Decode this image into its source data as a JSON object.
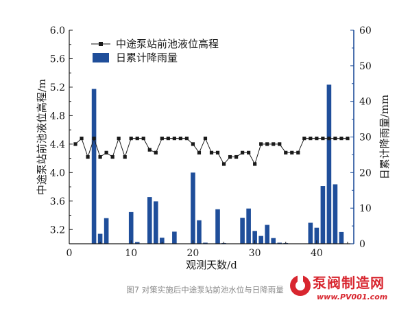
{
  "chart_data": {
    "type": "bar+line",
    "x_label": "观测天数/d",
    "y_left_label": "中途泵站前池液位高程/m",
    "y_right_label": "日累计降雨量/mm",
    "x_ticks": [
      0,
      10,
      20,
      30,
      40
    ],
    "xlim": [
      0,
      46
    ],
    "y_left_ticks": [
      "3.2",
      "3.6",
      "4.0",
      "4.4",
      "4.8",
      "5.2",
      "5.6",
      "6.0"
    ],
    "y_left_lim": [
      3.0,
      6.0
    ],
    "y_right_ticks": [
      "0",
      "10",
      "20",
      "30",
      "40",
      "50",
      "60"
    ],
    "y_right_lim": [
      0,
      60
    ],
    "legend": [
      {
        "name": "中途泵站前池液位高程",
        "marker": "line-square"
      },
      {
        "name": "日累计降雨量",
        "marker": "bar"
      }
    ],
    "line_series": {
      "name": "中途泵站前池液位高程",
      "color": "#1a1a1a",
      "x": [
        1,
        2,
        3,
        4,
        5,
        6,
        7,
        8,
        9,
        10,
        11,
        12,
        13,
        14,
        15,
        16,
        17,
        18,
        19,
        20,
        21,
        22,
        23,
        24,
        25,
        26,
        27,
        28,
        29,
        30,
        31,
        32,
        33,
        34,
        35,
        36,
        37,
        38,
        39,
        40,
        41,
        42,
        43,
        44,
        45
      ],
      "y": [
        4.4,
        4.48,
        4.22,
        4.48,
        4.22,
        4.28,
        4.22,
        4.48,
        4.22,
        4.48,
        4.48,
        4.48,
        4.32,
        4.28,
        4.48,
        4.48,
        4.48,
        4.48,
        4.48,
        4.4,
        4.28,
        4.48,
        4.28,
        4.28,
        4.12,
        4.22,
        4.22,
        4.28,
        4.28,
        4.12,
        4.4,
        4.4,
        4.4,
        4.4,
        4.28,
        4.28,
        4.28,
        4.48,
        4.48,
        4.48,
        4.48,
        4.48,
        4.48,
        4.48,
        4.48
      ]
    },
    "bar_series": {
      "name": "日累计降雨量",
      "color": "#1f4e9a",
      "x": [
        4,
        5,
        6,
        10,
        11,
        13,
        14,
        15,
        17,
        20,
        21,
        22,
        24,
        25,
        28,
        29,
        30,
        31,
        32,
        33,
        34,
        35,
        39,
        40,
        41,
        42,
        43,
        44
      ],
      "y": [
        43.5,
        2.8,
        7.2,
        8.9,
        0.5,
        13.1,
        11.9,
        1.7,
        3.4,
        20.0,
        6.6,
        0.3,
        9.7,
        0.2,
        7.3,
        9.9,
        3.6,
        2.2,
        5.3,
        1.6,
        0.3,
        0.2,
        5.9,
        4.5,
        16.2,
        44.7,
        16.7,
        3.3
      ]
    }
  },
  "caption": "图7 对策实施后中途泵站前池水位与日降雨量",
  "watermark": {
    "brand": "泵阀制造网",
    "url": "www.PV001.com",
    "color": "#d8262f"
  }
}
